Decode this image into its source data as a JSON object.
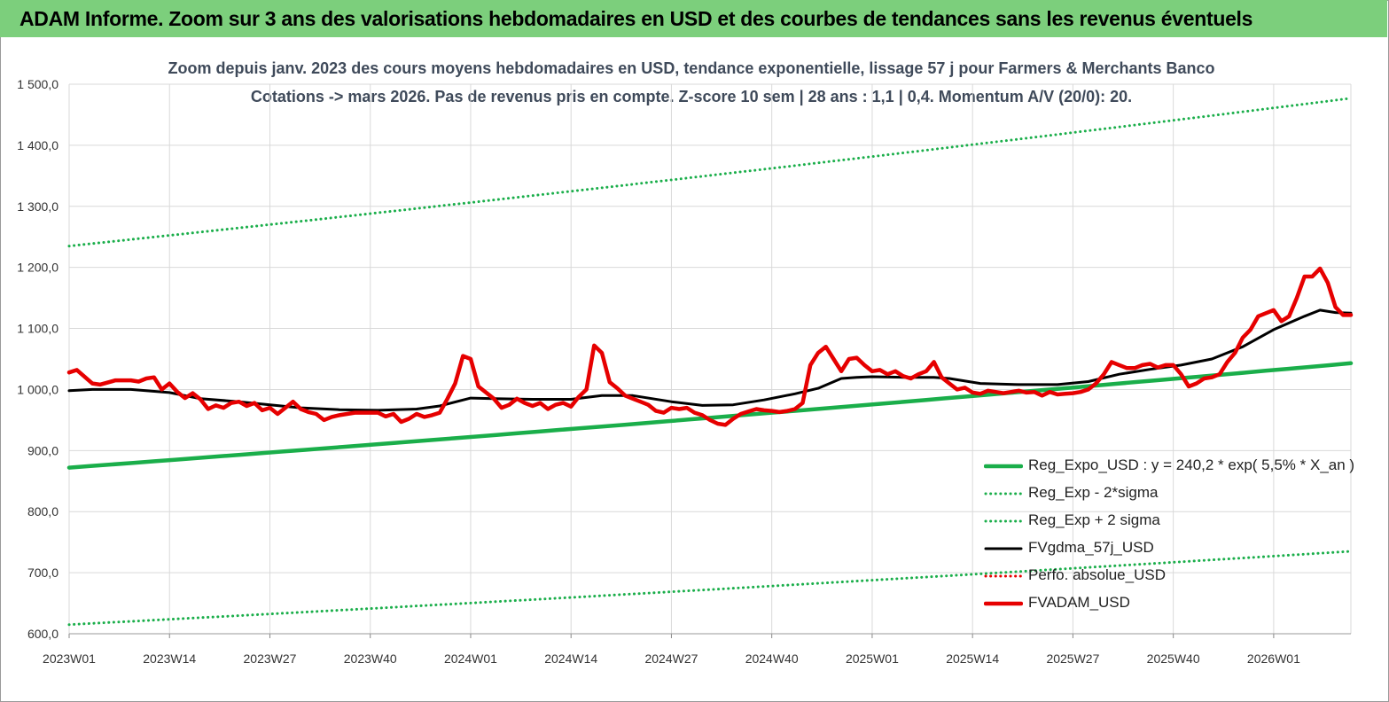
{
  "banner": {
    "title": "ADAM Informe. Zoom sur 3 ans des valorisations hebdomadaires en USD et des courbes de tendances sans les revenus éventuels",
    "color": "#7ccf7c"
  },
  "chart_data": {
    "type": "line",
    "title": "Zoom depuis janv. 2023 des cours moyens hebdomadaires en USD, tendance exponentielle, lissage 57 j pour Farmers & Merchants Banco",
    "subtitle": "Cotations -> mars 2026. Pas de revenus pris en compte. Z-score 10 sem | 28 ans : 1,1 | 0,4. Momentum A/V (20/0): 20.",
    "xlabel": "",
    "ylabel": "",
    "ylim": [
      600,
      1500
    ],
    "yticks": [
      "600,0",
      "700,0",
      "800,0",
      "900,0",
      "1 000,0",
      "1 100,0",
      "1 200,0",
      "1 300,0",
      "1 400,0",
      "1 500,0"
    ],
    "xlim": [
      0,
      166
    ],
    "xticks": [
      {
        "x": 0,
        "label": "2023W01"
      },
      {
        "x": 13,
        "label": "2023W14"
      },
      {
        "x": 26,
        "label": "2023W27"
      },
      {
        "x": 39,
        "label": "2023W40"
      },
      {
        "x": 52,
        "label": "2024W01"
      },
      {
        "x": 65,
        "label": "2024W14"
      },
      {
        "x": 78,
        "label": "2024W27"
      },
      {
        "x": 91,
        "label": "2024W40"
      },
      {
        "x": 104,
        "label": "2025W01"
      },
      {
        "x": 117,
        "label": "2025W14"
      },
      {
        "x": 130,
        "label": "2025W27"
      },
      {
        "x": 143,
        "label": "2025W40"
      },
      {
        "x": 156,
        "label": "2026W01"
      }
    ],
    "grid": true,
    "legend_position": "bottom-right",
    "series": [
      {
        "name": "Reg_Expo_USD : y = 240,2 * exp( 5,5% * X_an )",
        "color": "#1aae4a",
        "style": "solid-thick",
        "x": [
          0,
          166
        ],
        "values": [
          872,
          1043
        ]
      },
      {
        "name": "Reg_Exp - 2*sigma",
        "color": "#1aae4a",
        "style": "dotted",
        "x": [
          0,
          166
        ],
        "values": [
          615,
          735
        ]
      },
      {
        "name": "Reg_Exp + 2 sigma",
        "color": "#1aae4a",
        "style": "dotted",
        "x": [
          0,
          166
        ],
        "values": [
          1235,
          1477
        ]
      },
      {
        "name": "FVgdma_57j_USD",
        "color": "#000000",
        "style": "solid",
        "x": [
          0,
          3,
          8,
          13,
          17,
          22,
          26,
          30,
          35,
          40,
          45,
          48,
          52,
          55,
          60,
          65,
          69,
          73,
          78,
          82,
          86,
          90,
          94,
          97,
          100,
          102,
          104,
          108,
          112,
          114,
          118,
          123,
          128,
          132,
          136,
          140,
          144,
          148,
          152,
          156,
          160,
          162,
          164,
          166
        ],
        "values": [
          998,
          1000,
          1000,
          995,
          985,
          980,
          975,
          970,
          967,
          966,
          968,
          973,
          986,
          985,
          984,
          984,
          990,
          990,
          980,
          974,
          975,
          983,
          993,
          1002,
          1018,
          1020,
          1021,
          1020,
          1020,
          1018,
          1010,
          1008,
          1008,
          1013,
          1025,
          1033,
          1040,
          1050,
          1070,
          1098,
          1120,
          1130,
          1126,
          1125
        ]
      },
      {
        "name": "Perfo. absolue_USD",
        "color": "#e60000",
        "style": "dotted",
        "x": [],
        "values": []
      },
      {
        "name": "FVADAM_USD",
        "color": "#e60000",
        "style": "solid-thick",
        "x": [
          0,
          1,
          3,
          4,
          6,
          8,
          9,
          10,
          11,
          12,
          13,
          14,
          15,
          16,
          17,
          18,
          19,
          20,
          21,
          22,
          23,
          24,
          25,
          26,
          27,
          28,
          29,
          30,
          31,
          32,
          33,
          34,
          35,
          36,
          37,
          38,
          39,
          40,
          41,
          42,
          43,
          44,
          45,
          46,
          47,
          48,
          49,
          50,
          51,
          52,
          53,
          54,
          55,
          56,
          57,
          58,
          59,
          60,
          61,
          62,
          63,
          64,
          65,
          66,
          67,
          68,
          69,
          70,
          71,
          72,
          73,
          74,
          75,
          76,
          77,
          78,
          79,
          80,
          81,
          82,
          83,
          84,
          85,
          86,
          87,
          88,
          89,
          90,
          91,
          92,
          93,
          94,
          95,
          96,
          97,
          98,
          99,
          100,
          101,
          102,
          103,
          104,
          105,
          106,
          107,
          108,
          109,
          110,
          111,
          112,
          113,
          114,
          115,
          116,
          117,
          118,
          119,
          120,
          121,
          122,
          123,
          124,
          125,
          126,
          127,
          128,
          129,
          130,
          131,
          132,
          133,
          134,
          135,
          136,
          137,
          138,
          139,
          140,
          141,
          142,
          143,
          144,
          145,
          146,
          147,
          148,
          149,
          150,
          151,
          152,
          153,
          154,
          155,
          156,
          157,
          158,
          159,
          160,
          161,
          162,
          163,
          164,
          165,
          166
        ],
        "values": [
          1028,
          1032,
          1010,
          1008,
          1015,
          1015,
          1013,
          1018,
          1020,
          1000,
          1010,
          996,
          986,
          994,
          984,
          968,
          974,
          970,
          978,
          980,
          973,
          978,
          966,
          970,
          960,
          970,
          980,
          968,
          963,
          960,
          950,
          955,
          958,
          960,
          962,
          962,
          962,
          962,
          956,
          960,
          947,
          952,
          960,
          955,
          958,
          962,
          985,
          1010,
          1055,
          1050,
          1005,
          995,
          985,
          970,
          975,
          985,
          978,
          973,
          978,
          968,
          975,
          978,
          972,
          988,
          1000,
          1072,
          1060,
          1012,
          1002,
          990,
          985,
          980,
          975,
          965,
          962,
          970,
          968,
          970,
          962,
          958,
          950,
          944,
          942,
          952,
          960,
          964,
          968,
          966,
          965,
          963,
          965,
          968,
          978,
          1040,
          1060,
          1070,
          1050,
          1030,
          1050,
          1052,
          1040,
          1030,
          1032,
          1025,
          1030,
          1022,
          1018,
          1025,
          1030,
          1045,
          1020,
          1010,
          1000,
          1003,
          995,
          993,
          998,
          996,
          994,
          996,
          998,
          995,
          996,
          990,
          996,
          992,
          993,
          994,
          996,
          1000,
          1010,
          1025,
          1045,
          1040,
          1035,
          1035,
          1040,
          1042,
          1036,
          1040,
          1040,
          1025,
          1005,
          1010,
          1018,
          1020,
          1025,
          1045,
          1060,
          1085,
          1098,
          1120,
          1125,
          1130,
          1112,
          1120,
          1150,
          1185,
          1185,
          1198,
          1175,
          1135,
          1122,
          1122
        ]
      }
    ]
  }
}
